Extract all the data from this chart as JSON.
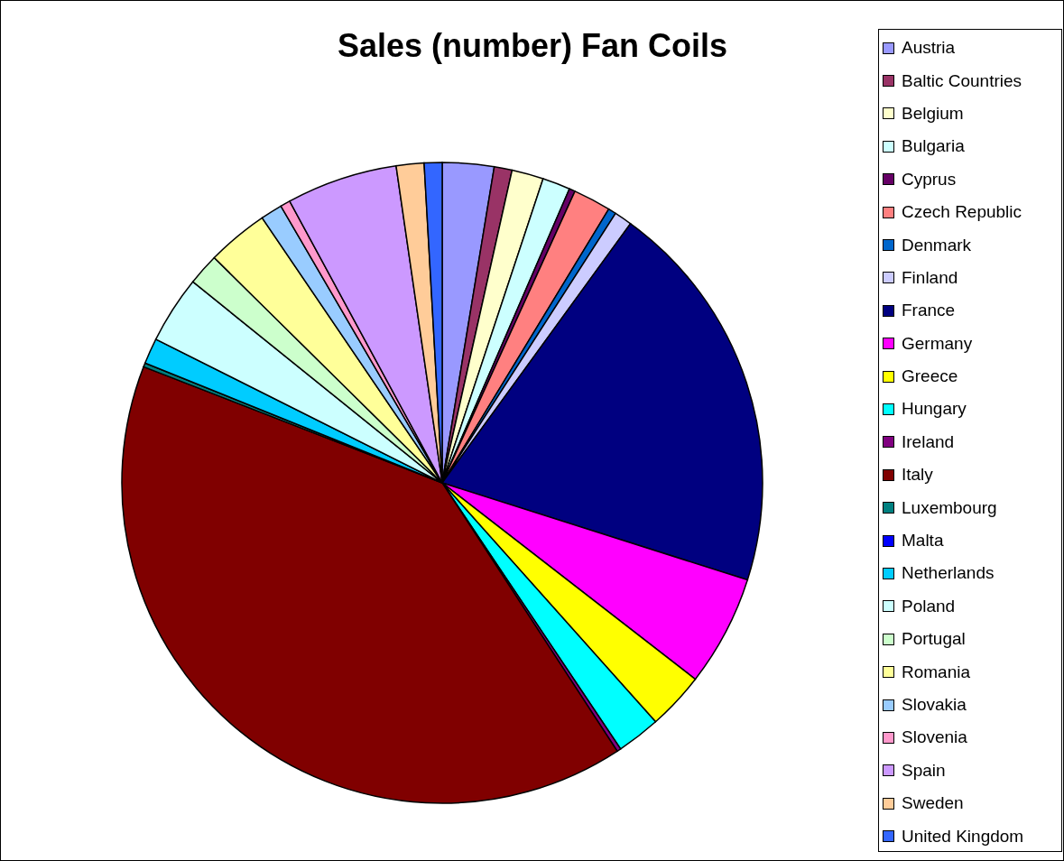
{
  "chart_data": {
    "type": "pie",
    "title": "Sales (number) Fan Coils",
    "categories": [
      "Austria",
      "Baltic Countries",
      "Belgium",
      "Bulgaria",
      "Cyprus",
      "Czech Republic",
      "Denmark",
      "Finland",
      "France",
      "Germany",
      "Greece",
      "Hungary",
      "Ireland",
      "Italy",
      "Luxembourg",
      "Malta",
      "Netherlands",
      "Poland",
      "Portugal",
      "Romania",
      "Slovakia",
      "Slovenia",
      "Spain",
      "Sweden",
      "United Kingdom"
    ],
    "values": [
      2.6,
      0.9,
      1.6,
      1.4,
      0.3,
      1.9,
      0.4,
      0.9,
      19.9,
      5.6,
      2.9,
      2.2,
      0.2,
      40.1,
      0.2,
      0,
      1.3,
      3.4,
      1.6,
      3.1,
      1.1,
      0.5,
      5.6,
      1.4,
      0.9
    ],
    "colors": [
      "#9999ff",
      "#993366",
      "#ffffcc",
      "#ccffff",
      "#660066",
      "#ff8080",
      "#0066cc",
      "#ccccff",
      "#000080",
      "#ff00ff",
      "#ffff00",
      "#00ffff",
      "#800080",
      "#800000",
      "#008080",
      "#0000ff",
      "#00ccff",
      "#ccffff",
      "#ccffcc",
      "#ffff99",
      "#99ccff",
      "#ff99cc",
      "#cc99ff",
      "#ffcc99",
      "#3366ff"
    ],
    "legend": "right"
  }
}
